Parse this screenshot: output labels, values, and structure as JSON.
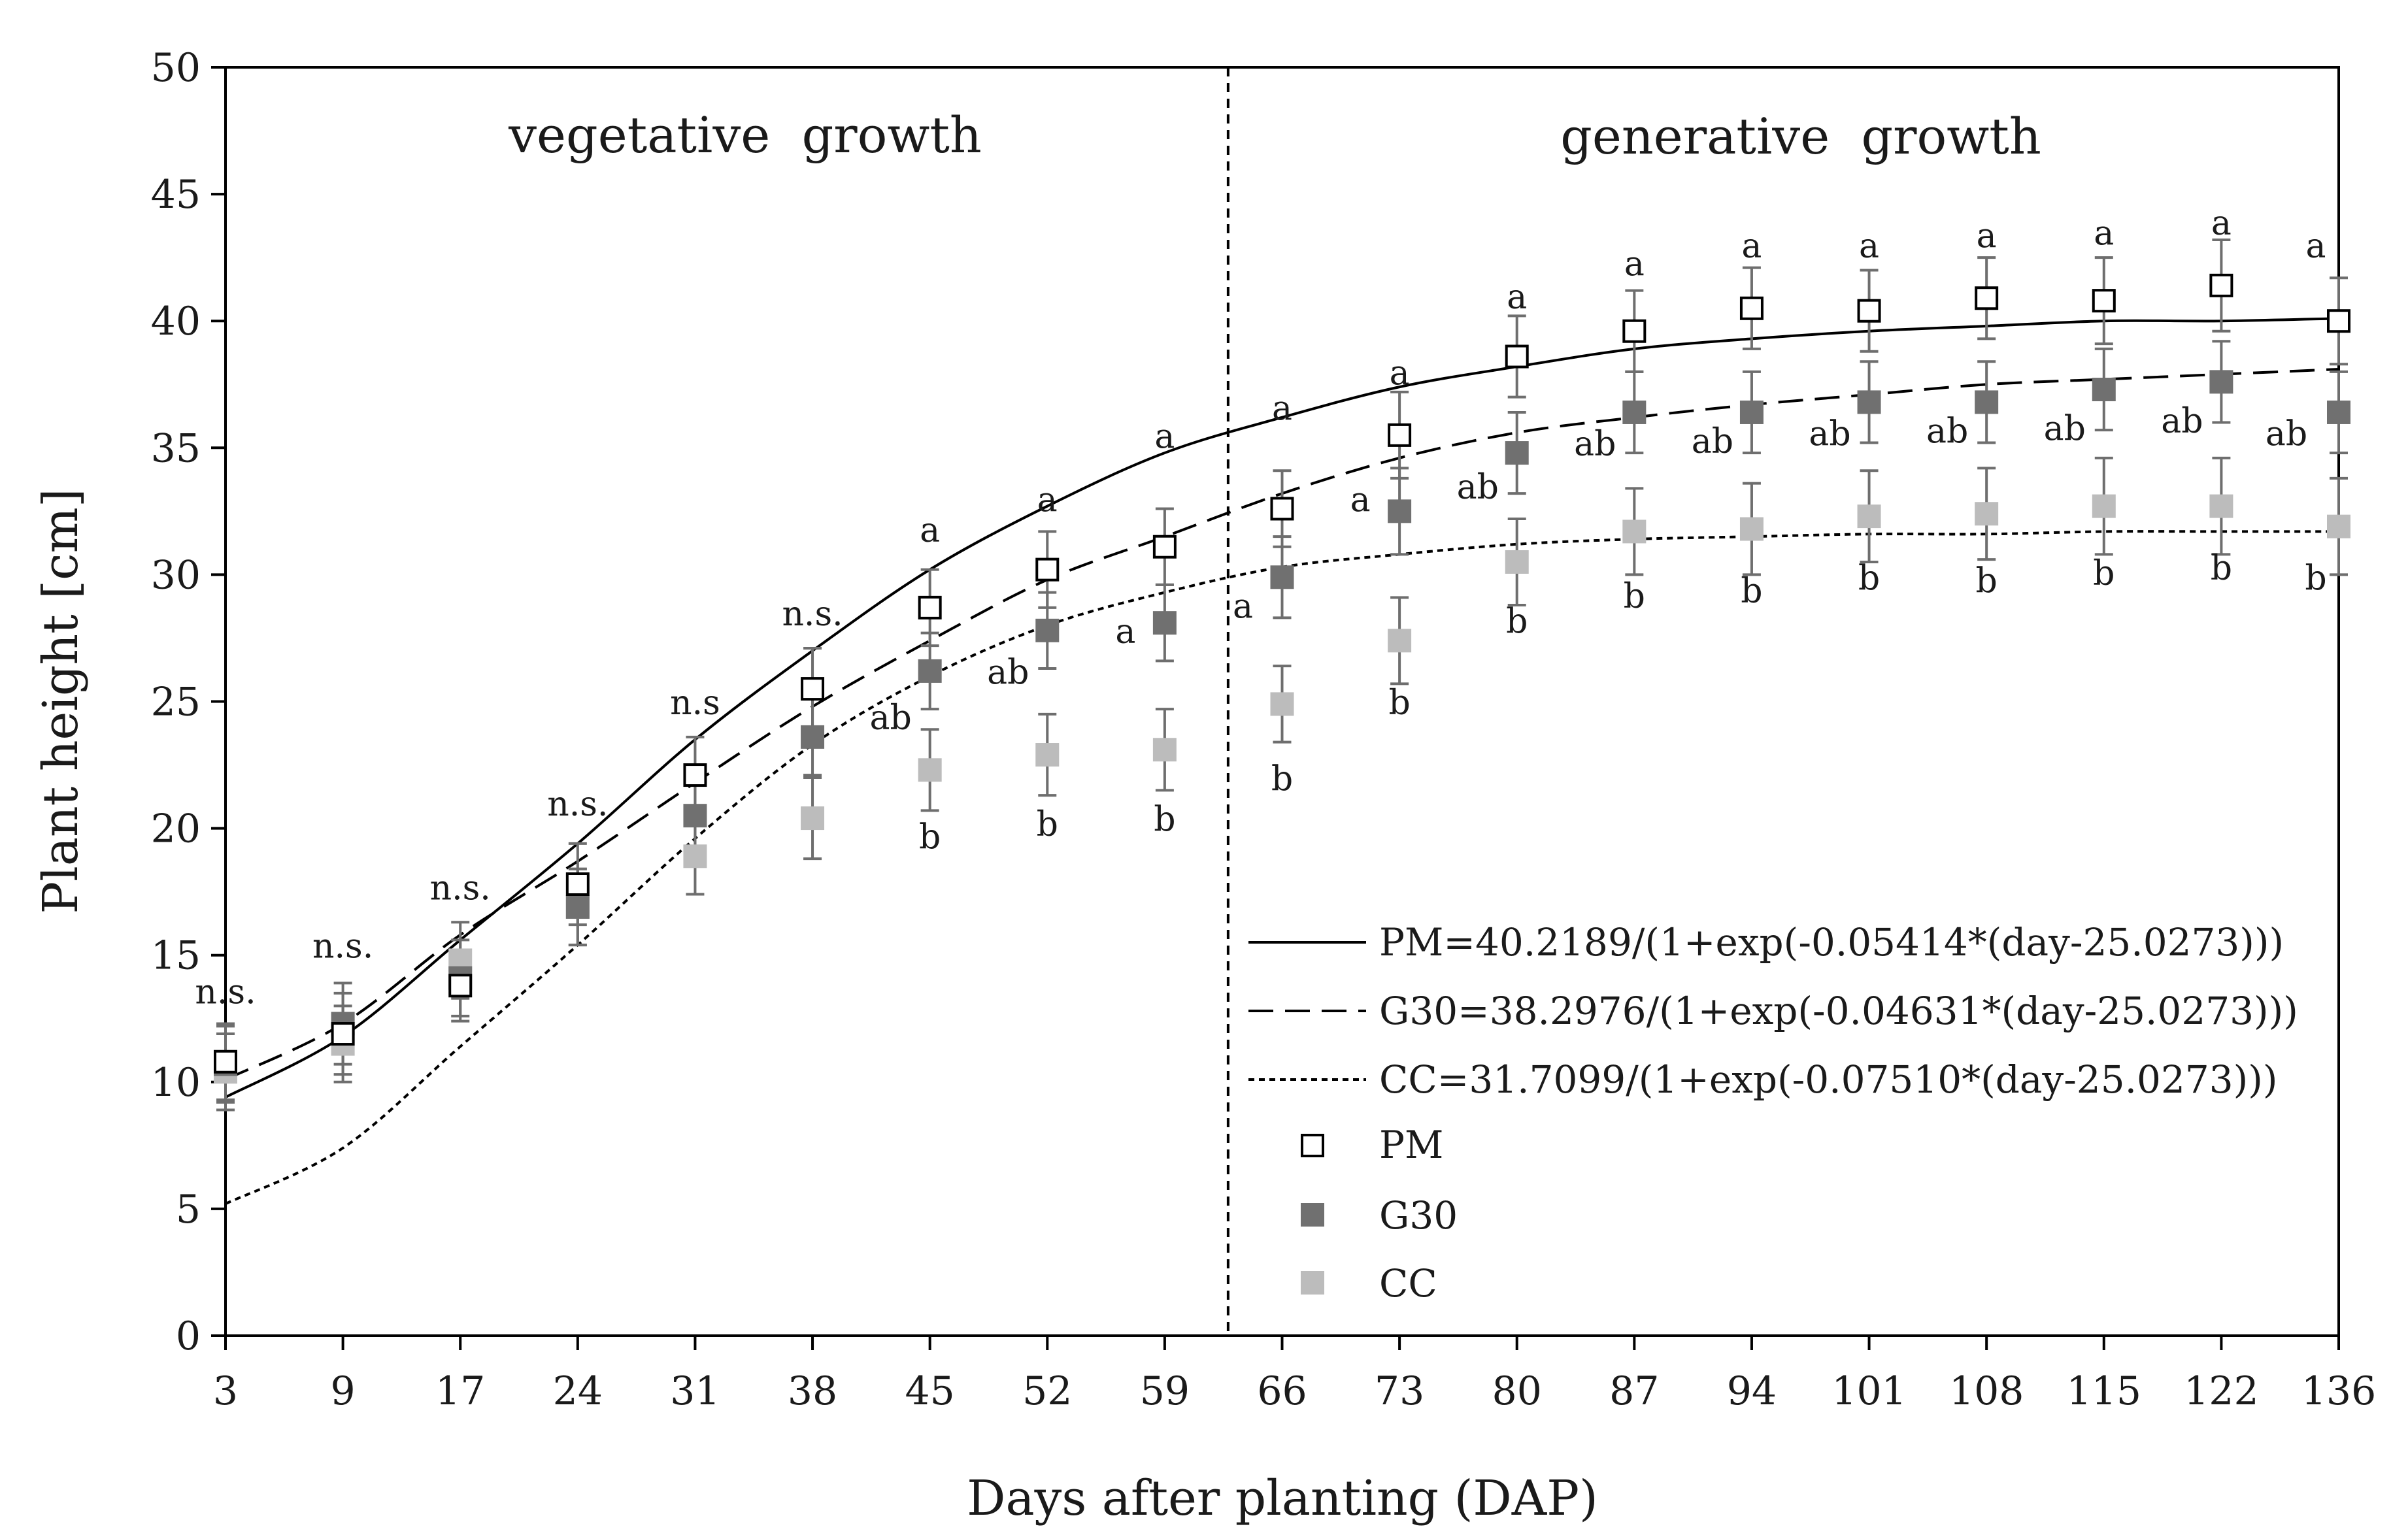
{
  "chart_data": {
    "type": "scatter",
    "xlabel": "Days after planting (DAP)",
    "ylabel": "Plant height [cm]",
    "ylim": [
      0,
      50
    ],
    "yticks": [
      0,
      5,
      10,
      15,
      20,
      25,
      30,
      35,
      40,
      45,
      50
    ],
    "categories": [
      "3",
      "9",
      "17",
      "24",
      "31",
      "38",
      "45",
      "52",
      "59",
      "66",
      "73",
      "80",
      "87",
      "94",
      "101",
      "108",
      "115",
      "122",
      "136"
    ],
    "grid": false,
    "legend_position": "bottom-right",
    "phase_divider_after_category": "59",
    "phases": [
      {
        "label": "vegetative  growth"
      },
      {
        "label": "generative  growth"
      }
    ],
    "series": [
      {
        "name": "PM",
        "marker": "open-square",
        "color": "#000000",
        "values": [
          10.8,
          11.9,
          13.8,
          17.8,
          22.1,
          25.5,
          28.7,
          30.2,
          31.1,
          32.6,
          35.5,
          38.6,
          39.6,
          40.5,
          40.4,
          40.9,
          40.8,
          41.4,
          40.0
        ],
        "error": [
          1.5,
          1.6,
          1.4,
          1.6,
          1.5,
          1.6,
          1.5,
          1.5,
          1.5,
          1.5,
          1.7,
          1.6,
          1.6,
          1.6,
          1.6,
          1.6,
          1.7,
          1.8,
          1.7
        ]
      },
      {
        "name": "G30",
        "marker": "filled-square",
        "color": "#707070",
        "values": [
          10.7,
          12.3,
          14.1,
          16.9,
          20.5,
          23.6,
          26.2,
          27.8,
          28.1,
          29.9,
          32.5,
          34.8,
          36.4,
          36.4,
          36.8,
          36.8,
          37.3,
          37.6,
          36.4
        ],
        "error": [
          1.5,
          1.6,
          1.5,
          1.5,
          1.6,
          1.5,
          1.5,
          1.5,
          1.5,
          1.6,
          1.7,
          1.6,
          1.6,
          1.6,
          1.6,
          1.6,
          1.6,
          1.6,
          1.6
        ]
      },
      {
        "name": "CC",
        "marker": "filled-square",
        "color": "#bcbcbc",
        "values": [
          10.4,
          11.5,
          14.8,
          16.9,
          18.9,
          20.4,
          22.3,
          22.9,
          23.1,
          24.9,
          27.4,
          30.5,
          31.7,
          31.8,
          32.3,
          32.4,
          32.7,
          32.7,
          31.9
        ],
        "error": [
          1.5,
          1.5,
          1.5,
          1.5,
          1.5,
          1.6,
          1.6,
          1.6,
          1.6,
          1.5,
          1.7,
          1.7,
          1.7,
          1.8,
          1.8,
          1.8,
          1.9,
          1.9,
          1.9
        ]
      }
    ],
    "fitted_curves": [
      {
        "name": "PM",
        "equation": "PM=40.2189/(1+exp(-0.05414*(day-25.0273)))",
        "style": "solid",
        "values": [
          9.4,
          11.8,
          15.6,
          19.4,
          23.5,
          27.0,
          30.2,
          32.7,
          34.8,
          36.2,
          37.4,
          38.2,
          38.9,
          39.3,
          39.6,
          39.8,
          40.0,
          40.0,
          40.1
        ]
      },
      {
        "name": "G30",
        "equation": "G30=38.2976/(1+exp(-0.04631*(day-25.0273)))",
        "style": "dashed",
        "values": [
          10.1,
          12.3,
          15.8,
          18.7,
          21.8,
          24.8,
          27.4,
          29.8,
          31.5,
          33.2,
          34.6,
          35.6,
          36.2,
          36.7,
          37.1,
          37.5,
          37.7,
          37.9,
          38.1
        ]
      },
      {
        "name": "CC",
        "equation": "CC=31.7099/(1+exp(-0.07510*(day-25.0273)))",
        "style": "dotted",
        "values": [
          5.2,
          7.4,
          11.4,
          15.4,
          19.6,
          23.3,
          26.0,
          28.0,
          29.3,
          30.3,
          30.8,
          31.2,
          31.4,
          31.5,
          31.6,
          31.6,
          31.7,
          31.7,
          31.7
        ]
      }
    ],
    "significance": [
      {
        "category": "3",
        "labels": [
          {
            "text": "n.s.",
            "y": 13.1
          }
        ]
      },
      {
        "category": "9",
        "labels": [
          {
            "text": "n.s.",
            "y": 14.9
          }
        ]
      },
      {
        "category": "17",
        "labels": [
          {
            "text": "n.s.",
            "y": 17.2
          }
        ]
      },
      {
        "category": "24",
        "labels": [
          {
            "text": "n.s.",
            "y": 20.5
          }
        ]
      },
      {
        "category": "31",
        "labels": [
          {
            "text": "n.s",
            "y": 24.5
          }
        ]
      },
      {
        "category": "38",
        "labels": [
          {
            "text": "n.s.",
            "y": 28.0
          }
        ]
      },
      {
        "category": "45",
        "labels": [
          {
            "text": "a",
            "y": 31.3
          },
          {
            "text": "ab",
            "y": 23.9
          },
          {
            "text": "b",
            "y": 19.2
          }
        ]
      },
      {
        "category": "52",
        "labels": [
          {
            "text": "a",
            "y": 32.5
          },
          {
            "text": "ab",
            "y": 25.7
          },
          {
            "text": "b",
            "y": 19.7
          }
        ]
      },
      {
        "category": "59",
        "labels": [
          {
            "text": "a",
            "y": 35.0
          },
          {
            "text": "a",
            "y": 27.3
          },
          {
            "text": "b",
            "y": 19.9
          }
        ]
      },
      {
        "category": "66",
        "labels": [
          {
            "text": "a",
            "y": 36.1
          },
          {
            "text": "a",
            "y": 28.3
          },
          {
            "text": "b",
            "y": 21.5
          }
        ]
      },
      {
        "category": "73",
        "labels": [
          {
            "text": "a",
            "y": 37.5
          },
          {
            "text": "a",
            "y": 32.5
          },
          {
            "text": "b",
            "y": 24.5
          }
        ]
      },
      {
        "category": "80",
        "labels": [
          {
            "text": "a",
            "y": 40.5
          },
          {
            "text": "ab",
            "y": 33.0
          },
          {
            "text": "b",
            "y": 27.7
          }
        ]
      },
      {
        "category": "87",
        "labels": [
          {
            "text": "a",
            "y": 41.8
          },
          {
            "text": "ab",
            "y": 34.7
          },
          {
            "text": "b",
            "y": 28.7
          }
        ]
      },
      {
        "category": "94",
        "labels": [
          {
            "text": "a",
            "y": 42.5
          },
          {
            "text": "ab",
            "y": 34.8
          },
          {
            "text": "b",
            "y": 28.9
          }
        ]
      },
      {
        "category": "101",
        "labels": [
          {
            "text": "a",
            "y": 42.5
          },
          {
            "text": "ab",
            "y": 35.1
          },
          {
            "text": "b",
            "y": 29.4
          }
        ]
      },
      {
        "category": "108",
        "labels": [
          {
            "text": "a",
            "y": 42.9
          },
          {
            "text": "ab",
            "y": 35.2
          },
          {
            "text": "b",
            "y": 29.3
          }
        ]
      },
      {
        "category": "115",
        "labels": [
          {
            "text": "a",
            "y": 43.0
          },
          {
            "text": "ab",
            "y": 35.3
          },
          {
            "text": "b",
            "y": 29.6
          }
        ]
      },
      {
        "category": "122",
        "labels": [
          {
            "text": "a",
            "y": 43.4
          },
          {
            "text": "ab",
            "y": 35.6
          },
          {
            "text": "b",
            "y": 29.8
          }
        ]
      },
      {
        "category": "136",
        "labels": [
          {
            "text": "a",
            "y": 42.5
          },
          {
            "text": "ab",
            "y": 35.1
          },
          {
            "text": "b",
            "y": 29.4
          }
        ]
      }
    ]
  }
}
